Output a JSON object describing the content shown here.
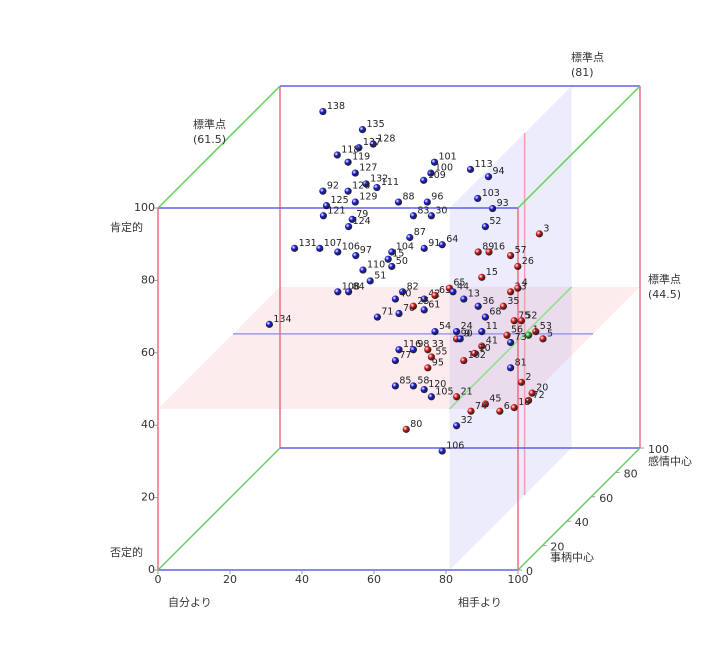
{
  "chart_data": {
    "type": "scatter3d",
    "xlim": [
      0,
      100
    ],
    "ylim": [
      0,
      100
    ],
    "zlim": [
      0,
      100
    ],
    "xticks": [
      0,
      20,
      40,
      60,
      80,
      100
    ],
    "yticks": [
      0,
      20,
      40,
      60,
      80,
      100
    ],
    "zticks": [
      0,
      20,
      40,
      60,
      80,
      100
    ],
    "x_end_labels": [
      "自分より",
      "相手より"
    ],
    "y_end_labels": [
      "否定的",
      "肯定的"
    ],
    "z_end_labels": [
      "事柄中心",
      "感情中心"
    ],
    "reference_planes": [
      {
        "axis": "x",
        "title": "標準点",
        "value": 81,
        "label": "(81)"
      },
      {
        "axis": "y",
        "title": "標準点",
        "value": 44.5,
        "label": "(44.5)"
      },
      {
        "axis": "z",
        "title": "標準点",
        "value": 61.5,
        "label": "(61.5)"
      }
    ],
    "points": [
      {
        "label": "138",
        "x": 17,
        "y": 98,
        "z": 85,
        "color": "#1a1ad0"
      },
      {
        "label": "135",
        "x": 28,
        "y": 93,
        "z": 85,
        "color": "#1a1ad0"
      },
      {
        "label": "128",
        "x": 31,
        "y": 89,
        "z": 85,
        "color": "#1a1ad0"
      },
      {
        "label": "137",
        "x": 27,
        "y": 88,
        "z": 85,
        "color": "#1a1ad0"
      },
      {
        "label": "118",
        "x": 21,
        "y": 86,
        "z": 85,
        "color": "#1a1ad0"
      },
      {
        "label": "119",
        "x": 24,
        "y": 84,
        "z": 85,
        "color": "#1a1ad0"
      },
      {
        "label": "127",
        "x": 26,
        "y": 81,
        "z": 85,
        "color": "#1a1ad0"
      },
      {
        "label": "132",
        "x": 29,
        "y": 78,
        "z": 85,
        "color": "#1a1ad0"
      },
      {
        "label": "111",
        "x": 32,
        "y": 77,
        "z": 85,
        "color": "#1a1ad0"
      },
      {
        "label": "92",
        "x": 17,
        "y": 76,
        "z": 85,
        "color": "#1a1ad0"
      },
      {
        "label": "126",
        "x": 24,
        "y": 76,
        "z": 85,
        "color": "#1a1ad0"
      },
      {
        "label": "129",
        "x": 26,
        "y": 73,
        "z": 85,
        "color": "#1a1ad0"
      },
      {
        "label": "125",
        "x": 18,
        "y": 72,
        "z": 85,
        "color": "#1a1ad0"
      },
      {
        "label": "101",
        "x": 48,
        "y": 84,
        "z": 85,
        "color": "#1a1ad0"
      },
      {
        "label": "100",
        "x": 47,
        "y": 81,
        "z": 85,
        "color": "#1a1ad0"
      },
      {
        "label": "109",
        "x": 45,
        "y": 79,
        "z": 85,
        "color": "#1a1ad0"
      },
      {
        "label": "113",
        "x": 58,
        "y": 82,
        "z": 85,
        "color": "#1a1ad0"
      },
      {
        "label": "94",
        "x": 63,
        "y": 80,
        "z": 85,
        "color": "#1a1ad0"
      },
      {
        "label": "96",
        "x": 46,
        "y": 73,
        "z": 85,
        "color": "#1a1ad0"
      },
      {
        "label": "88",
        "x": 38,
        "y": 73,
        "z": 85,
        "color": "#1a1ad0"
      },
      {
        "label": "103",
        "x": 60,
        "y": 74,
        "z": 85,
        "color": "#1a1ad0"
      },
      {
        "label": "121",
        "x": 29,
        "y": 81,
        "z": 50,
        "color": "#1a1ad0"
      },
      {
        "label": "79",
        "x": 37,
        "y": 80,
        "z": 50,
        "color": "#1a1ad0"
      },
      {
        "label": "124",
        "x": 36,
        "y": 78,
        "z": 50,
        "color": "#1a1ad0"
      },
      {
        "label": "93",
        "x": 76,
        "y": 83,
        "z": 50,
        "color": "#1a1ad0"
      },
      {
        "label": "83",
        "x": 54,
        "y": 81,
        "z": 50,
        "color": "#1a1ad0"
      },
      {
        "label": "30",
        "x": 59,
        "y": 81,
        "z": 50,
        "color": "#1a1ad0"
      },
      {
        "label": "52",
        "x": 74,
        "y": 78,
        "z": 50,
        "color": "#1a1ad0"
      },
      {
        "label": "87",
        "x": 53,
        "y": 75,
        "z": 50,
        "color": "#1a1ad0"
      },
      {
        "label": "131",
        "x": 21,
        "y": 72,
        "z": 50,
        "color": "#1a1ad0"
      },
      {
        "label": "107",
        "x": 28,
        "y": 72,
        "z": 50,
        "color": "#1a1ad0"
      },
      {
        "label": "106",
        "x": 33,
        "y": 71,
        "z": 50,
        "color": "#1a1ad0"
      },
      {
        "label": "97",
        "x": 38,
        "y": 70,
        "z": 50,
        "color": "#1a1ad0"
      },
      {
        "label": "104",
        "x": 48,
        "y": 71,
        "z": 50,
        "color": "#1a1ad0"
      },
      {
        "label": "15",
        "x": 47,
        "y": 69,
        "z": 50,
        "color": "#1a1ad0"
      },
      {
        "label": "50",
        "x": 48,
        "y": 67,
        "z": 50,
        "color": "#1a1ad0"
      },
      {
        "label": "91",
        "x": 57,
        "y": 72,
        "z": 50,
        "color": "#1a1ad0"
      },
      {
        "label": "64",
        "x": 62,
        "y": 73,
        "z": 50,
        "color": "#1a1ad0"
      },
      {
        "label": "110",
        "x": 40,
        "y": 66,
        "z": 50,
        "color": "#1a1ad0"
      },
      {
        "label": "51",
        "x": 42,
        "y": 63,
        "z": 50,
        "color": "#1a1ad0"
      },
      {
        "label": "108",
        "x": 33,
        "y": 60,
        "z": 50,
        "color": "#1a1ad0"
      },
      {
        "label": "84",
        "x": 36,
        "y": 60,
        "z": 50,
        "color": "#1a1ad0"
      },
      {
        "label": "82",
        "x": 51,
        "y": 60,
        "z": 50,
        "color": "#1a1ad0"
      },
      {
        "label": "40",
        "x": 49,
        "y": 58,
        "z": 50,
        "color": "#1a1ad0"
      },
      {
        "label": "42",
        "x": 57,
        "y": 58,
        "z": 50,
        "color": "#1a1ad0"
      },
      {
        "label": "71",
        "x": 44,
        "y": 53,
        "z": 50,
        "color": "#1a1ad0"
      },
      {
        "label": "70",
        "x": 50,
        "y": 54,
        "z": 50,
        "color": "#1a1ad0"
      },
      {
        "label": "61",
        "x": 57,
        "y": 55,
        "z": 50,
        "color": "#1a1ad0"
      },
      {
        "label": "25",
        "x": 54,
        "y": 56,
        "z": 50,
        "color": "#d01818"
      },
      {
        "label": "63",
        "x": 60,
        "y": 59,
        "z": 50,
        "color": "#d01818"
      },
      {
        "label": "65",
        "x": 64,
        "y": 61,
        "z": 50,
        "color": "#d01818"
      },
      {
        "label": "15",
        "x": 73,
        "y": 64,
        "z": 50,
        "color": "#d01818"
      },
      {
        "label": "89",
        "x": 72,
        "y": 71,
        "z": 50,
        "color": "#d01818"
      },
      {
        "label": "16",
        "x": 75,
        "y": 71,
        "z": 50,
        "color": "#d01818"
      },
      {
        "label": "57",
        "x": 81,
        "y": 70,
        "z": 50,
        "color": "#d01818"
      },
      {
        "label": "3",
        "x": 89,
        "y": 76,
        "z": 50,
        "color": "#d01818"
      },
      {
        "label": "26",
        "x": 83,
        "y": 67,
        "z": 50,
        "color": "#d01818"
      },
      {
        "label": "23",
        "x": 81,
        "y": 60,
        "z": 50,
        "color": "#d01818"
      },
      {
        "label": "4",
        "x": 83,
        "y": 61,
        "z": 50,
        "color": "#d01818"
      },
      {
        "label": "35",
        "x": 79,
        "y": 56,
        "z": 50,
        "color": "#d01818"
      },
      {
        "label": "75",
        "x": 82,
        "y": 52,
        "z": 50,
        "color": "#d01818"
      },
      {
        "label": "52",
        "x": 84,
        "y": 52,
        "z": 50,
        "color": "#d01818"
      },
      {
        "label": "56",
        "x": 80,
        "y": 48,
        "z": 50,
        "color": "#d01818"
      },
      {
        "label": "53",
        "x": 88,
        "y": 49,
        "z": 50,
        "color": "#d01818"
      },
      {
        "label": "1",
        "x": 86,
        "y": 48,
        "z": 50,
        "color": "#18b018"
      },
      {
        "label": "5",
        "x": 90,
        "y": 47,
        "z": 50,
        "color": "#d01818"
      },
      {
        "label": "44",
        "x": 65,
        "y": 60,
        "z": 50,
        "color": "#1a1ad0"
      },
      {
        "label": "13",
        "x": 68,
        "y": 58,
        "z": 50,
        "color": "#1a1ad0"
      },
      {
        "label": "36",
        "x": 72,
        "y": 56,
        "z": 50,
        "color": "#1a1ad0"
      },
      {
        "label": "68",
        "x": 74,
        "y": 53,
        "z": 50,
        "color": "#1a1ad0"
      },
      {
        "label": "24",
        "x": 66,
        "y": 49,
        "z": 50,
        "color": "#1a1ad0"
      },
      {
        "label": "11",
        "x": 73,
        "y": 49,
        "z": 50,
        "color": "#1a1ad0"
      },
      {
        "label": "54",
        "x": 60,
        "y": 49,
        "z": 50,
        "color": "#1a1ad0"
      },
      {
        "label": "90",
        "x": 66,
        "y": 47,
        "z": 50,
        "color": "#d01818"
      },
      {
        "label": "9",
        "x": 67,
        "y": 47,
        "z": 50,
        "color": "#1a1ad0"
      },
      {
        "label": "73",
        "x": 81,
        "y": 46,
        "z": 50,
        "color": "#1a1ad0"
      },
      {
        "label": "41",
        "x": 73,
        "y": 45,
        "z": 50,
        "color": "#d01818"
      },
      {
        "label": "10",
        "x": 71,
        "y": 43,
        "z": 50,
        "color": "#d01818"
      },
      {
        "label": "102",
        "x": 68,
        "y": 41,
        "z": 50,
        "color": "#d01818"
      },
      {
        "label": "116",
        "x": 50,
        "y": 44,
        "z": 50,
        "color": "#1a1ad0"
      },
      {
        "label": "98",
        "x": 54,
        "y": 44,
        "z": 50,
        "color": "#1a1ad0"
      },
      {
        "label": "33",
        "x": 58,
        "y": 44,
        "z": 50,
        "color": "#d01818"
      },
      {
        "label": "77",
        "x": 49,
        "y": 41,
        "z": 50,
        "color": "#1a1ad0"
      },
      {
        "label": "55",
        "x": 59,
        "y": 42,
        "z": 50,
        "color": "#d01818"
      },
      {
        "label": "95",
        "x": 58,
        "y": 39,
        "z": 50,
        "color": "#d01818"
      },
      {
        "label": "81",
        "x": 81,
        "y": 39,
        "z": 50,
        "color": "#1a1ad0"
      },
      {
        "label": "2",
        "x": 84,
        "y": 35,
        "z": 50,
        "color": "#d01818"
      },
      {
        "label": "20",
        "x": 87,
        "y": 32,
        "z": 50,
        "color": "#d01818"
      },
      {
        "label": "72",
        "x": 86,
        "y": 30,
        "z": 50,
        "color": "#d01818"
      },
      {
        "label": "85",
        "x": 49,
        "y": 34,
        "z": 50,
        "color": "#1a1ad0"
      },
      {
        "label": "58",
        "x": 54,
        "y": 34,
        "z": 50,
        "color": "#1a1ad0"
      },
      {
        "label": "120",
        "x": 57,
        "y": 33,
        "z": 50,
        "color": "#1a1ad0"
      },
      {
        "label": "105",
        "x": 59,
        "y": 31,
        "z": 50,
        "color": "#1a1ad0"
      },
      {
        "label": "21",
        "x": 66,
        "y": 31,
        "z": 50,
        "color": "#d01818"
      },
      {
        "label": "45",
        "x": 74,
        "y": 29,
        "z": 50,
        "color": "#d01818"
      },
      {
        "label": "74",
        "x": 70,
        "y": 27,
        "z": 50,
        "color": "#d01818"
      },
      {
        "label": "18",
        "x": 82,
        "y": 28,
        "z": 50,
        "color": "#d01818"
      },
      {
        "label": "6",
        "x": 78,
        "y": 27,
        "z": 50,
        "color": "#d01818"
      },
      {
        "label": "32",
        "x": 66,
        "y": 23,
        "z": 50,
        "color": "#1a1ad0"
      },
      {
        "label": "80",
        "x": 52,
        "y": 22,
        "z": 50,
        "color": "#d01818"
      },
      {
        "label": "106",
        "x": 62,
        "y": 16,
        "z": 50,
        "color": "#1a1ad0"
      },
      {
        "label": "134",
        "x": 14,
        "y": 51,
        "z": 50,
        "color": "#1a1ad0"
      }
    ]
  }
}
